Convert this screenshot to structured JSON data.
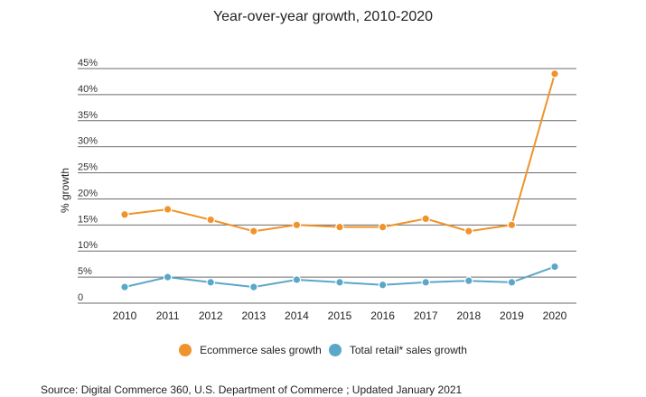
{
  "chart_data": {
    "type": "line",
    "title": "Year-over-year growth, 2010-2020",
    "ylabel": "% growth",
    "xlabel": "",
    "categories": [
      "2010",
      "2011",
      "2012",
      "2013",
      "2014",
      "2015",
      "2016",
      "2017",
      "2018",
      "2019",
      "2020"
    ],
    "y_ticks": [
      0,
      5,
      10,
      15,
      20,
      25,
      30,
      35,
      40,
      45
    ],
    "y_tick_labels": [
      "0",
      "5%",
      "10%",
      "15%",
      "20%",
      "25%",
      "30%",
      "35%",
      "40%",
      "45%"
    ],
    "ylim": [
      0,
      45
    ],
    "grid": true,
    "legend_position": "bottom",
    "series": [
      {
        "name": "Ecommerce sales growth",
        "color": "#f0932b",
        "values": [
          17,
          18,
          16,
          13.8,
          15,
          14.6,
          14.6,
          16.2,
          13.8,
          15,
          44
        ]
      },
      {
        "name": "Total retail* sales growth",
        "color": "#5ba7c9",
        "values": [
          3.1,
          5,
          4,
          3.1,
          4.5,
          4,
          3.5,
          4,
          4.3,
          4,
          7
        ]
      }
    ]
  },
  "source": "Source: Digital Commerce 360, U.S. Department of Commerce ; Updated January 2021"
}
